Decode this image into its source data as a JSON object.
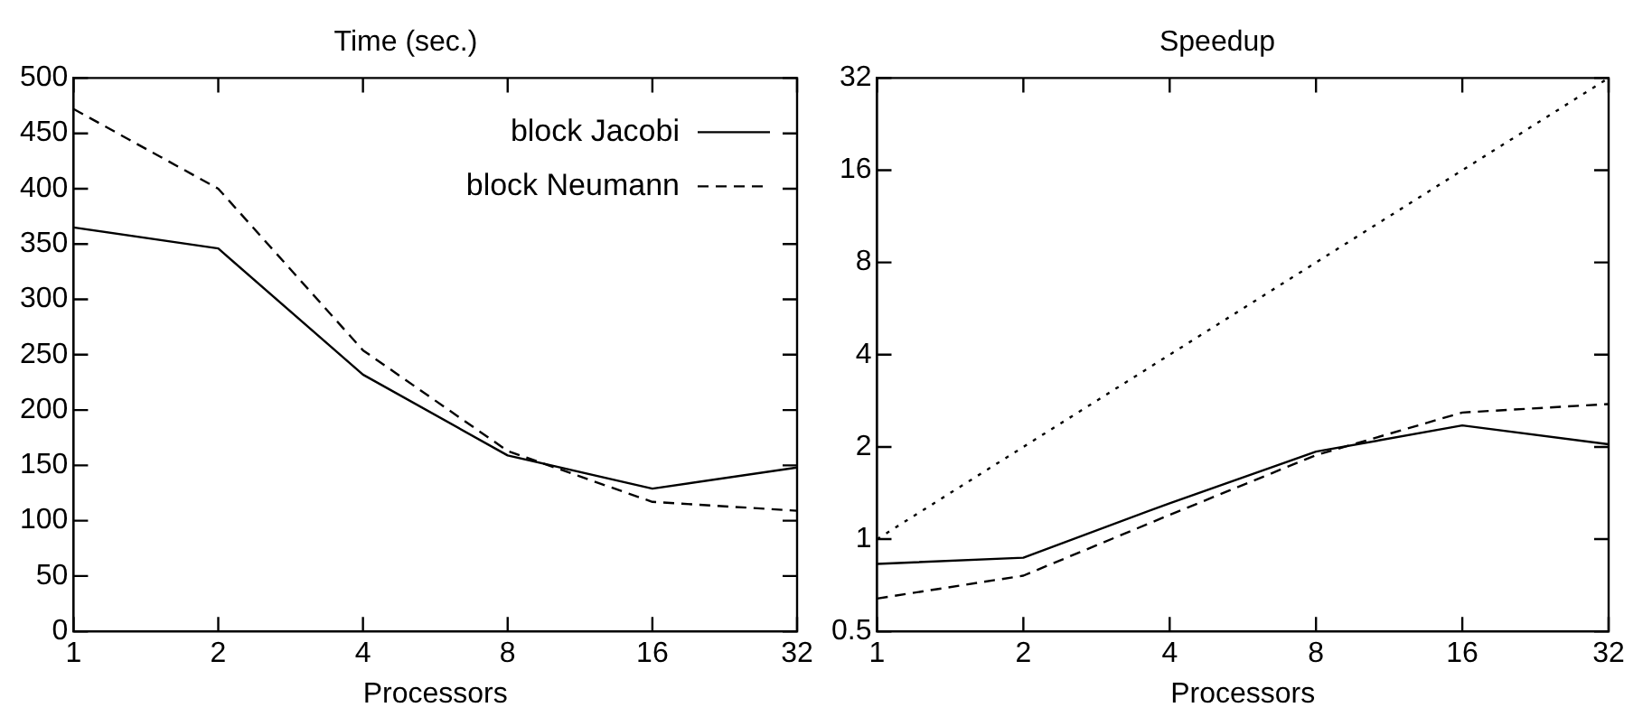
{
  "chart_data": [
    {
      "type": "line",
      "title": "Time (sec.)",
      "xlabel": "Processors",
      "x": [
        1,
        2,
        4,
        8,
        16,
        32
      ],
      "log": "x",
      "xlim": [
        1,
        32
      ],
      "xticks": [
        1,
        2,
        4,
        8,
        16,
        32
      ],
      "ylim": [
        0,
        500
      ],
      "yticks": [
        0,
        50,
        100,
        150,
        200,
        250,
        300,
        350,
        400,
        450,
        500
      ],
      "grid": false,
      "legend": "top right",
      "marker": "none",
      "series": [
        {
          "name": "block Jacobi",
          "color": "#000000",
          "line_style": "solid",
          "values": [
            365,
            346,
            232,
            159,
            129,
            148
          ]
        },
        {
          "name": "block Neumann",
          "color": "#000000",
          "line_style": "dashed",
          "values": [
            472,
            400,
            254,
            163,
            117,
            109
          ]
        }
      ]
    },
    {
      "type": "line",
      "title": "Speedup",
      "xlabel": "Processors",
      "x": [
        1,
        2,
        4,
        8,
        16,
        32
      ],
      "log": "xy",
      "xlim": [
        1,
        32
      ],
      "xticks": [
        1,
        2,
        4,
        8,
        16,
        32
      ],
      "ylim": [
        0.5,
        32
      ],
      "yticks": [
        0.5,
        1,
        2,
        4,
        8,
        16,
        32
      ],
      "grid": false,
      "marker": "none",
      "series": [
        {
          "color": "#000000",
          "line_style": "solid",
          "values": [
            0.83,
            0.87,
            1.31,
            1.93,
            2.35,
            2.04
          ]
        },
        {
          "color": "#000000",
          "line_style": "dashed",
          "values": [
            0.64,
            0.76,
            1.2,
            1.88,
            2.59,
            2.76
          ]
        },
        {
          "color": "#000000",
          "line_style": "dotted",
          "values": [
            1,
            2,
            4,
            8,
            16,
            32
          ]
        }
      ]
    }
  ]
}
